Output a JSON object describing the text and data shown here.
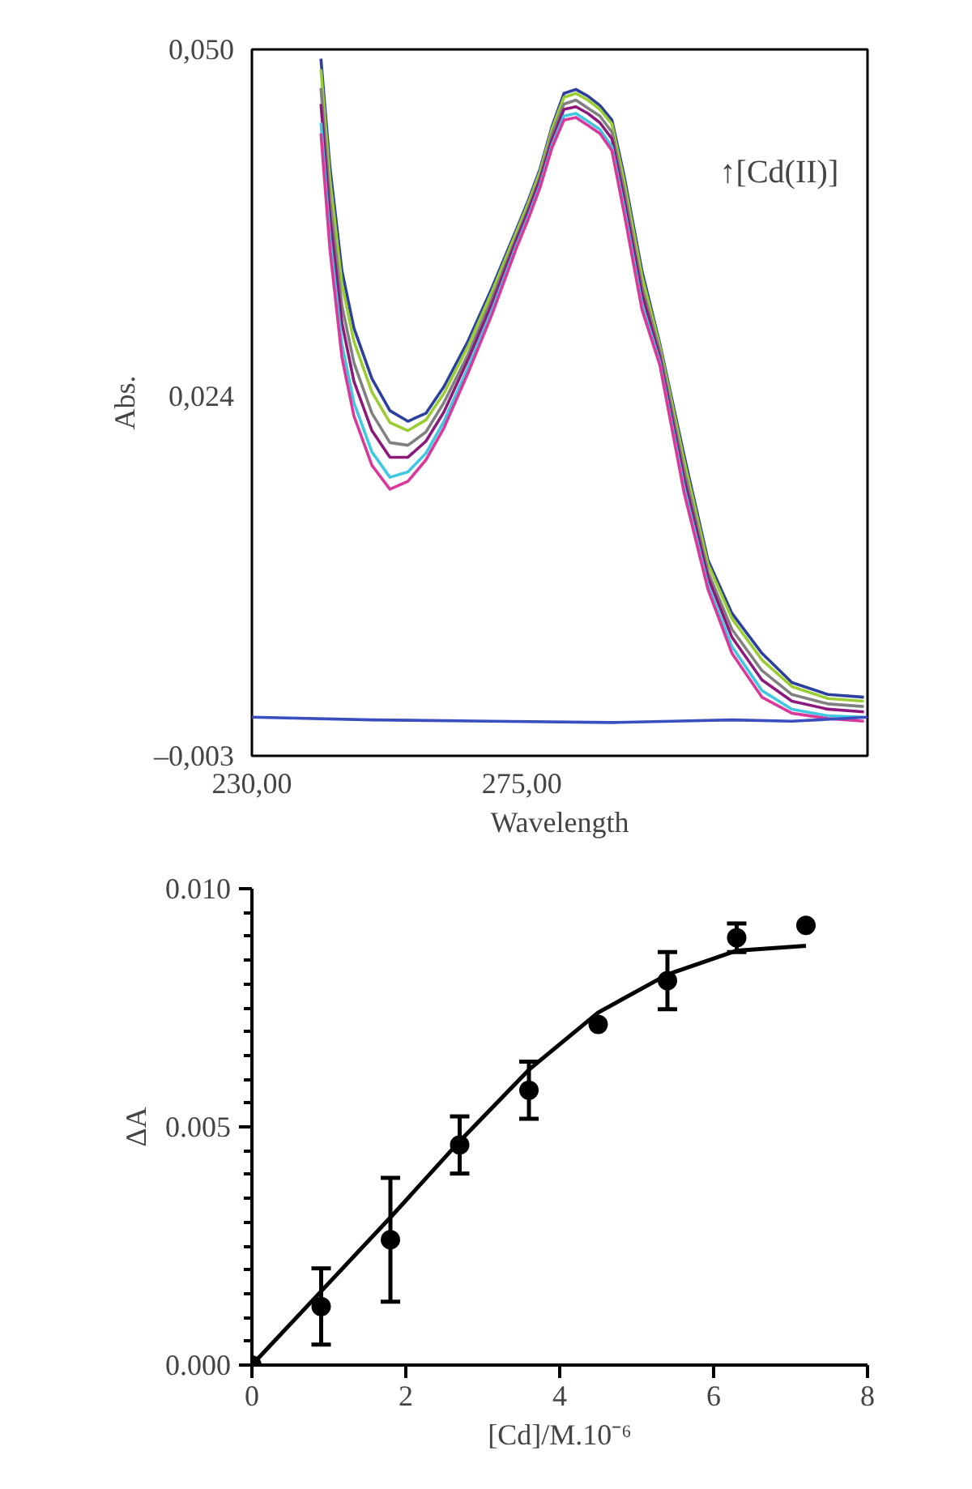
{
  "chart_data": [
    {
      "type": "line",
      "xlabel": "Wavelength",
      "ylabel": "Abs.",
      "xlim": [
        230,
        332.6
      ],
      "ylim": [
        -0.003,
        0.05
      ],
      "xticks": [
        {
          "value": 230,
          "label": "230,00"
        },
        {
          "value": 275,
          "label": "275,00"
        }
      ],
      "yticks": [
        {
          "value": -0.003,
          "label": "–0,003"
        },
        {
          "value": 0.024,
          "label": "0,024"
        },
        {
          "value": 0.05,
          "label": "0,050"
        }
      ],
      "grid": false,
      "annotations": [
        "↑[Cd(II)]"
      ],
      "x": [
        241.5,
        243,
        245,
        247,
        250,
        253,
        256,
        259,
        262,
        266,
        270,
        274,
        276,
        278,
        280,
        282,
        284,
        286,
        288,
        290,
        292,
        295,
        298,
        302,
        306,
        310,
        315,
        320,
        326,
        332
      ],
      "series": [
        {
          "color": "#2b3f9e",
          "values": [
            0.0493,
            0.0412,
            0.0334,
            0.0291,
            0.0253,
            0.0229,
            0.0221,
            0.0227,
            0.0247,
            0.0281,
            0.0321,
            0.0364,
            0.0386,
            0.041,
            0.0442,
            0.0467,
            0.047,
            0.0465,
            0.0458,
            0.0447,
            0.0406,
            0.0334,
            0.0279,
            0.0196,
            0.0117,
            0.0077,
            0.0047,
            0.0025,
            0.0016,
            0.0014
          ]
        },
        {
          "color": "#9acd32",
          "values": [
            0.0485,
            0.0403,
            0.0324,
            0.0281,
            0.0243,
            0.022,
            0.0214,
            0.0222,
            0.0242,
            0.0277,
            0.0318,
            0.0362,
            0.0384,
            0.0408,
            0.044,
            0.0464,
            0.0467,
            0.0462,
            0.0455,
            0.0444,
            0.0402,
            0.033,
            0.0277,
            0.0192,
            0.0114,
            0.0073,
            0.0042,
            0.0022,
            0.0013,
            0.0011
          ]
        },
        {
          "color": "#808080",
          "values": [
            0.0471,
            0.0387,
            0.0308,
            0.0265,
            0.0227,
            0.0205,
            0.0203,
            0.0213,
            0.0235,
            0.0271,
            0.0313,
            0.0358,
            0.038,
            0.0404,
            0.0436,
            0.0459,
            0.0462,
            0.0456,
            0.045,
            0.0438,
            0.0395,
            0.0322,
            0.0273,
            0.0185,
            0.0108,
            0.0065,
            0.0034,
            0.0016,
            0.0009,
            0.0007
          ]
        },
        {
          "color": "#8b1a7b",
          "values": [
            0.0459,
            0.0375,
            0.0295,
            0.0251,
            0.0214,
            0.0194,
            0.0194,
            0.0206,
            0.0228,
            0.0267,
            0.0309,
            0.0356,
            0.0378,
            0.0402,
            0.0432,
            0.0455,
            0.0457,
            0.0452,
            0.0445,
            0.0433,
            0.0389,
            0.0317,
            0.0269,
            0.0179,
            0.0104,
            0.0059,
            0.0027,
            0.0011,
            0.0005,
            0.0003
          ]
        },
        {
          "color": "#40c8e0",
          "values": [
            0.0445,
            0.0359,
            0.0279,
            0.0235,
            0.0198,
            0.0179,
            0.0183,
            0.0197,
            0.0221,
            0.0261,
            0.0304,
            0.0352,
            0.0374,
            0.0398,
            0.0428,
            0.045,
            0.0452,
            0.0446,
            0.044,
            0.0427,
            0.0382,
            0.0309,
            0.0265,
            0.0172,
            0.0098,
            0.0052,
            0.0019,
            0.0005,
            0.0,
            -0.0001
          ]
        },
        {
          "color": "#d9399a",
          "values": [
            0.0437,
            0.035,
            0.0269,
            0.0225,
            0.0188,
            0.017,
            0.0176,
            0.0192,
            0.0216,
            0.0257,
            0.0301,
            0.035,
            0.0372,
            0.0396,
            0.0426,
            0.0447,
            0.0449,
            0.0443,
            0.0437,
            0.0424,
            0.0378,
            0.0305,
            0.0263,
            0.0168,
            0.0095,
            0.0047,
            0.0014,
            0.0002,
            -0.0002,
            -0.0004
          ]
        },
        {
          "color": "#3a4fbf",
          "x": [
            230,
            250,
            270,
            290,
            300,
            310,
            320,
            332.6
          ],
          "values": [
            -0.0001,
            -0.0003,
            -0.0004,
            -0.0005,
            -0.0004,
            -0.0003,
            -0.0004,
            -0.0001
          ]
        }
      ]
    },
    {
      "type": "scatter",
      "xlabel": "[Cd]/M.10⁻⁶",
      "ylabel": "ΔA",
      "xlim": [
        0,
        8
      ],
      "ylim": [
        0,
        0.01
      ],
      "xticks": [
        0,
        2,
        4,
        6,
        8
      ],
      "yticks": [
        {
          "value": 0,
          "label": "0.000"
        },
        {
          "value": 0.005,
          "label": "0.005"
        },
        {
          "value": 0.01,
          "label": "0.010"
        }
      ],
      "grid": false,
      "series": [
        {
          "type": "scatter",
          "marker": "circle",
          "color": "#000000",
          "x": [
            0,
            0.9,
            1.8,
            2.7,
            3.6,
            4.5,
            5.4,
            6.3,
            7.2
          ],
          "values": [
            0,
            0.00123,
            0.00263,
            0.00462,
            0.00577,
            0.00715,
            0.00807,
            0.00897,
            0.00923
          ],
          "errors": [
            null,
            0.0008,
            0.0013,
            0.0006,
            0.0006,
            null,
            0.0006,
            0.0003,
            null
          ]
        },
        {
          "type": "line",
          "color": "#000000",
          "x": [
            0,
            0.9,
            1.8,
            2.7,
            3.6,
            4.5,
            5.4,
            6.3,
            7.2
          ],
          "values": [
            0,
            0.00155,
            0.0031,
            0.0047,
            0.0062,
            0.0074,
            0.0082,
            0.0087,
            0.0088
          ]
        }
      ]
    }
  ]
}
